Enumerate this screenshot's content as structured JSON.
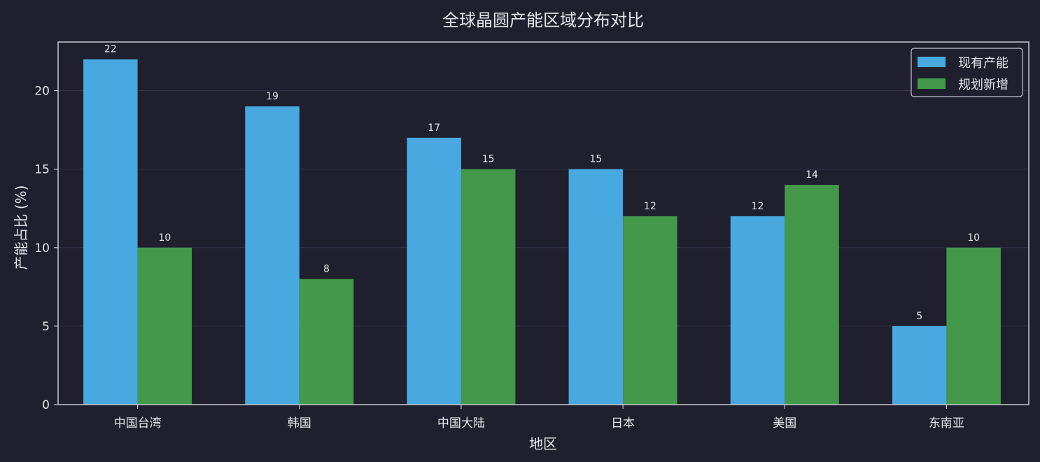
{
  "chart_data": {
    "type": "bar",
    "title": "全球晶圆产能区域分布对比",
    "xlabel": "地区",
    "ylabel": "产能占比 (%)",
    "categories": [
      "中国台湾",
      "韩国",
      "中国大陆",
      "日本",
      "美国",
      "东南亚"
    ],
    "series": [
      {
        "name": "现有产能",
        "values": [
          22,
          19,
          17,
          15,
          12,
          5
        ],
        "color": "#48a8e0"
      },
      {
        "name": "规划新增",
        "values": [
          10,
          8,
          15,
          12,
          14,
          10
        ],
        "color": "#43984a"
      }
    ],
    "ylim": [
      0,
      23.1
    ],
    "yticks": [
      0,
      5,
      10,
      15,
      20
    ],
    "grid": true,
    "legend": "top-right"
  },
  "colors": {
    "background": "#1f1f2e",
    "axis": "#c8c8d0",
    "grid": "#33334a",
    "text": "#e6e6ea"
  }
}
